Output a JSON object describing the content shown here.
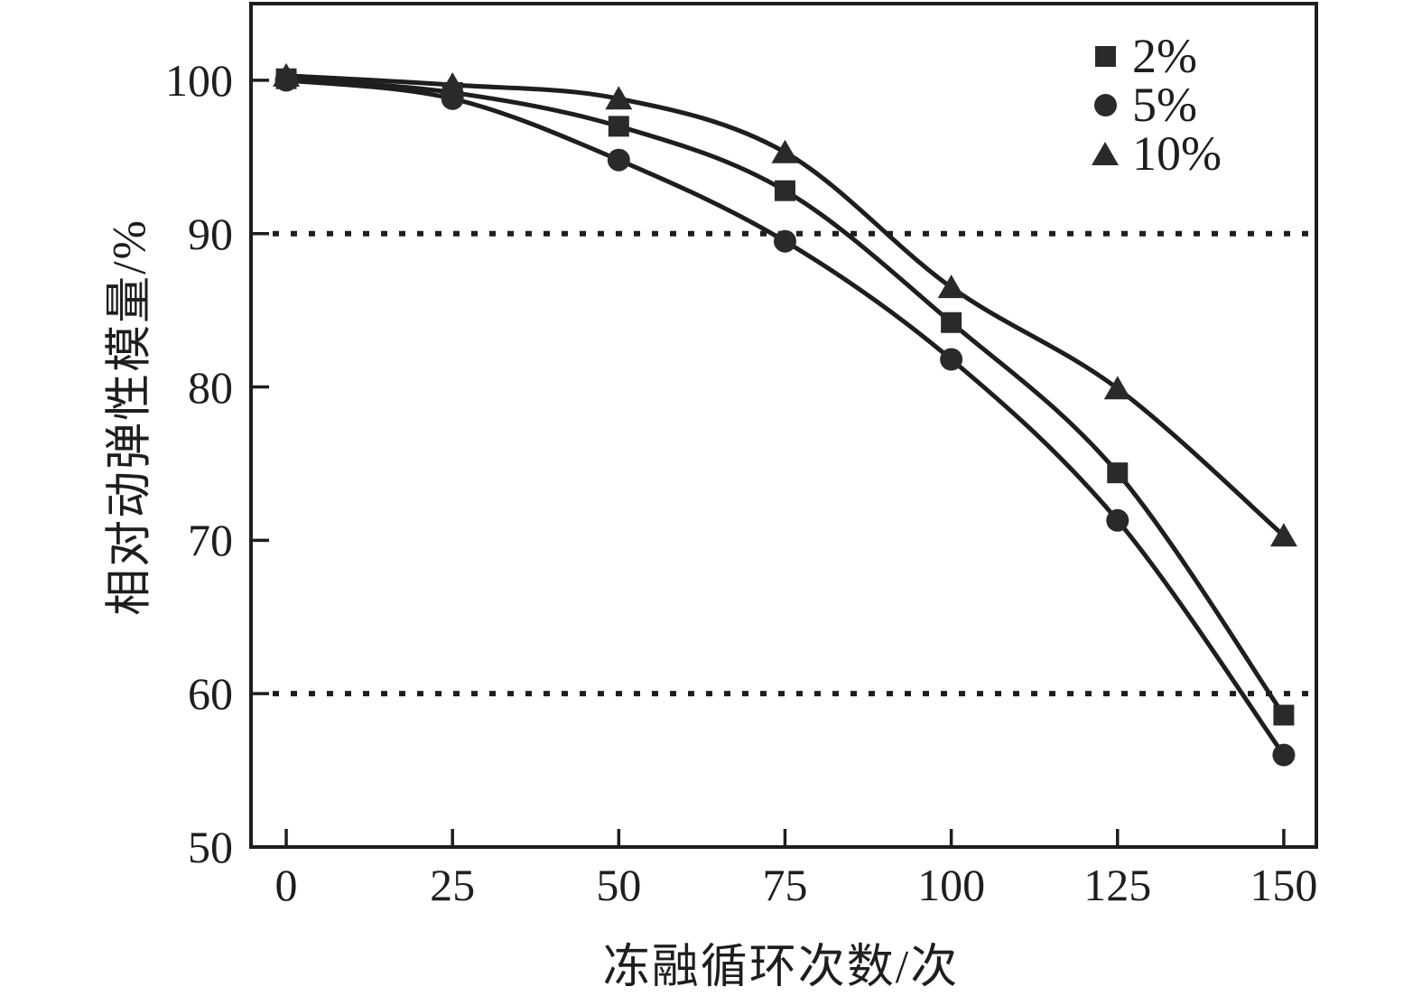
{
  "figure": {
    "background": "#ffffff",
    "ink_color": "#1e1e1e",
    "marker_color": "#2a2a2a"
  },
  "chart_data": {
    "type": "scatter",
    "title": "",
    "xlabel": "冻融循环次数/次",
    "ylabel": "相对动弹性模量/%",
    "x": [
      0,
      25,
      50,
      75,
      100,
      125,
      150
    ],
    "series": [
      {
        "name": "2%",
        "marker": "square",
        "values": [
          100.1,
          99.2,
          97.0,
          92.8,
          84.2,
          74.4,
          58.6
        ]
      },
      {
        "name": "5%",
        "marker": "circle",
        "values": [
          100.0,
          98.8,
          94.8,
          89.5,
          81.8,
          71.3,
          56.0
        ]
      },
      {
        "name": "10%",
        "marker": "triangle",
        "values": [
          100.3,
          99.7,
          98.8,
          95.3,
          86.5,
          79.9,
          70.3
        ]
      }
    ],
    "x_ticks": [
      0,
      25,
      50,
      75,
      100,
      125,
      150
    ],
    "y_ticks": [
      50,
      60,
      70,
      80,
      90,
      100
    ],
    "xlim": [
      -5.3,
      154.9
    ],
    "ylim": [
      50,
      105
    ],
    "reference_lines_y": [
      90,
      60
    ],
    "legend_position": "top-right",
    "curve_style": "smooth-fit-line",
    "grid": false
  }
}
